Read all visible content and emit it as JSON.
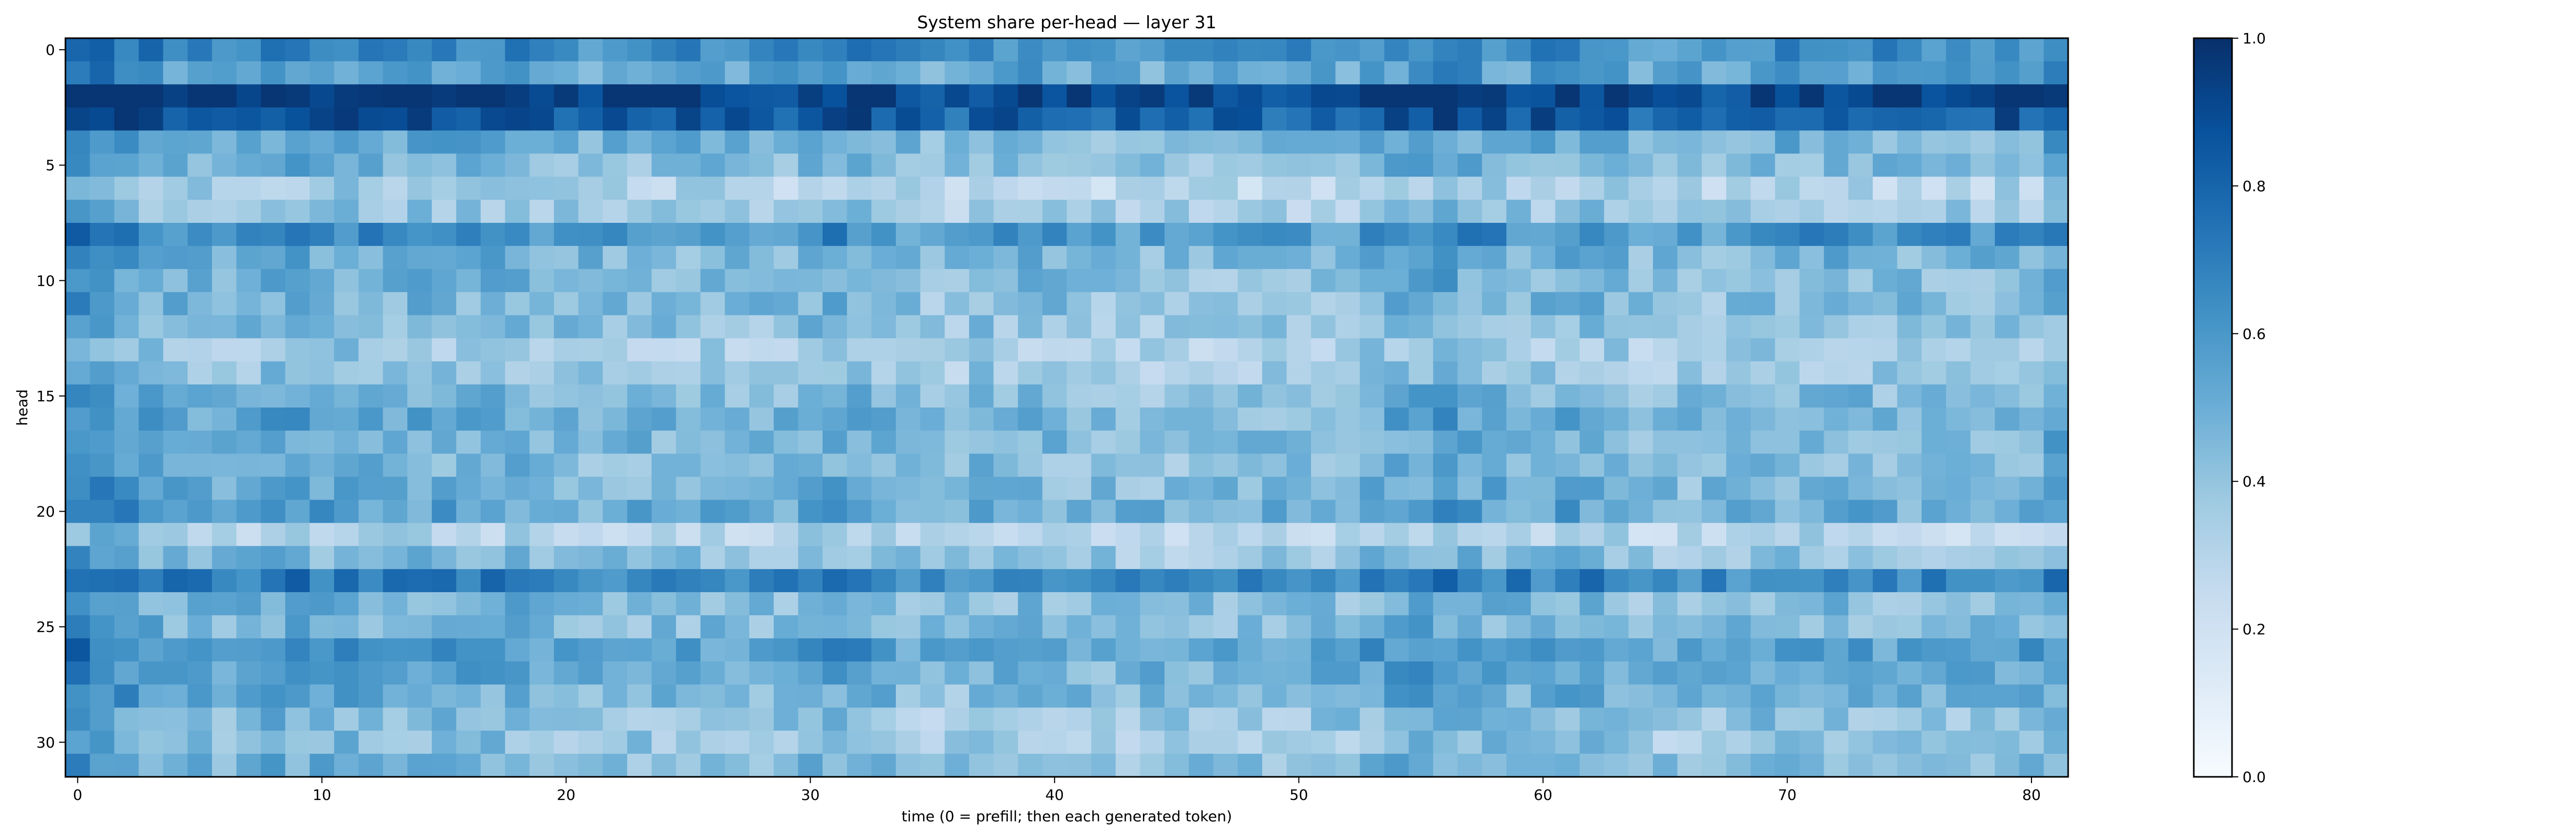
{
  "chart_data": {
    "type": "heatmap",
    "title": "System share per-head — layer 31",
    "xlabel": "time (0 = prefill; then each generated token)",
    "ylabel": "head",
    "n_cols": 82,
    "n_rows": 32,
    "xlim": [
      0,
      81
    ],
    "ylim": [
      0,
      31
    ],
    "x_ticks": [
      0,
      10,
      20,
      30,
      40,
      50,
      60,
      70,
      80
    ],
    "y_ticks": [
      0,
      5,
      10,
      15,
      20,
      25,
      30
    ],
    "colormap": "Blues",
    "colorbar": {
      "min": 0.0,
      "max": 1.0,
      "ticks": [
        "0.0",
        "0.2",
        "0.4",
        "0.6",
        "0.8",
        "1.0"
      ]
    },
    "colors": {
      "low": "#f7fbff",
      "high": "#08306b"
    },
    "row_base": [
      0.65,
      0.55,
      0.93,
      0.85,
      0.5,
      0.45,
      0.32,
      0.38,
      0.62,
      0.48,
      0.46,
      0.45,
      0.42,
      0.35,
      0.38,
      0.45,
      0.5,
      0.48,
      0.45,
      0.48,
      0.52,
      0.3,
      0.42,
      0.68,
      0.45,
      0.45,
      0.58,
      0.52,
      0.48,
      0.42,
      0.4,
      0.45
    ],
    "col_effect": [
      0.18,
      0.15,
      0.12,
      0.05,
      0.03,
      0.02,
      0.02,
      0.03,
      0.06,
      0.06,
      0.05,
      0.04,
      0.04,
      0.03,
      0.03,
      0.02,
      0.02,
      0.02,
      0.03,
      0.0,
      0.0,
      -0.02,
      -0.02,
      -0.02,
      -0.02,
      -0.02,
      -0.02,
      -0.02,
      -0.02,
      -0.02,
      0.02,
      0.05,
      0.04,
      0.0,
      -0.04,
      -0.06,
      -0.06,
      0.0,
      -0.02,
      0.0,
      -0.02,
      -0.04,
      -0.05,
      -0.05,
      -0.05,
      -0.05,
      -0.04,
      -0.05,
      -0.04,
      -0.04,
      -0.04,
      -0.04,
      -0.03,
      0.02,
      0.04,
      0.06,
      0.08,
      0.04,
      0.02,
      0.0,
      0.0,
      0.03,
      0.02,
      0.0,
      -0.05,
      -0.05,
      -0.04,
      -0.04,
      -0.02,
      0.0,
      0.0,
      0.0,
      0.0,
      0.0,
      -0.02,
      -0.02,
      -0.02,
      -0.02,
      -0.02,
      0.0,
      0.0,
      0.05
    ]
  }
}
